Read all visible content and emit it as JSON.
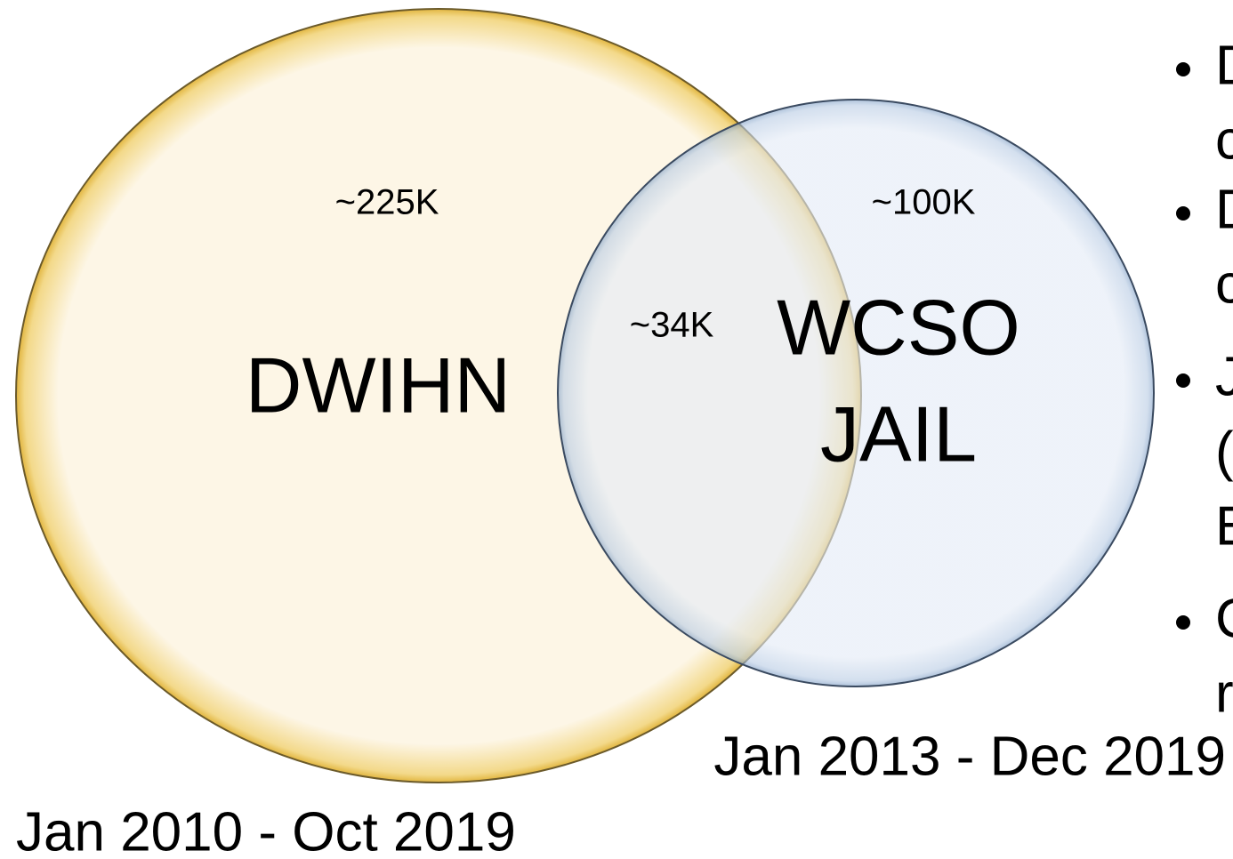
{
  "venn": {
    "sets": [
      {
        "label": "DWIHN",
        "count": "~225K",
        "period": "Jan 2010 - Oct 2019"
      },
      {
        "label_lines": [
          "WCSO",
          "JAIL"
        ],
        "count": "~100K",
        "period": "Jan 2013 - Dec 2019"
      }
    ],
    "overlap": "~34K"
  },
  "bullets": [
    [
      "D",
      "c"
    ],
    [
      "D",
      "c"
    ],
    [
      "J",
      "(",
      "E"
    ],
    [
      "C",
      "r"
    ]
  ]
}
